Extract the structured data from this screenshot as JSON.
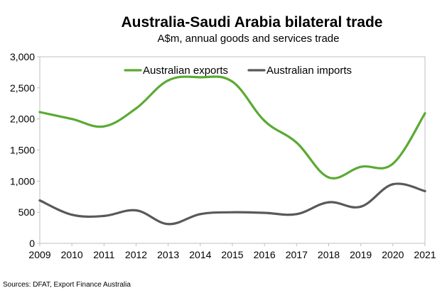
{
  "chart_data": {
    "type": "line",
    "title": "Australia-Saudi Arabia bilateral trade",
    "subtitle": "A$m, annual goods and services trade",
    "xlabel": "",
    "ylabel": "",
    "x": [
      "2009",
      "2010",
      "2011",
      "2012",
      "2013",
      "2014",
      "2015",
      "2016",
      "2017",
      "2018",
      "2019",
      "2020",
      "2021"
    ],
    "y_ticks": [
      "0",
      "500",
      "1,000",
      "1,500",
      "2,000",
      "2,500",
      "3,000"
    ],
    "ylim": [
      0,
      3000
    ],
    "grid": false,
    "legend_position": "top",
    "series": [
      {
        "name": "Australian exports",
        "color": "#5aaa32",
        "values": [
          2110,
          2000,
          1880,
          2170,
          2620,
          2670,
          2600,
          1970,
          1620,
          1060,
          1230,
          1280,
          2090
        ]
      },
      {
        "name": "Australian imports",
        "color": "#595959",
        "values": [
          690,
          460,
          440,
          530,
          310,
          470,
          500,
          490,
          470,
          660,
          590,
          950,
          840
        ]
      }
    ]
  },
  "source_note": "Sources: DFAT, Export Finance Australia"
}
